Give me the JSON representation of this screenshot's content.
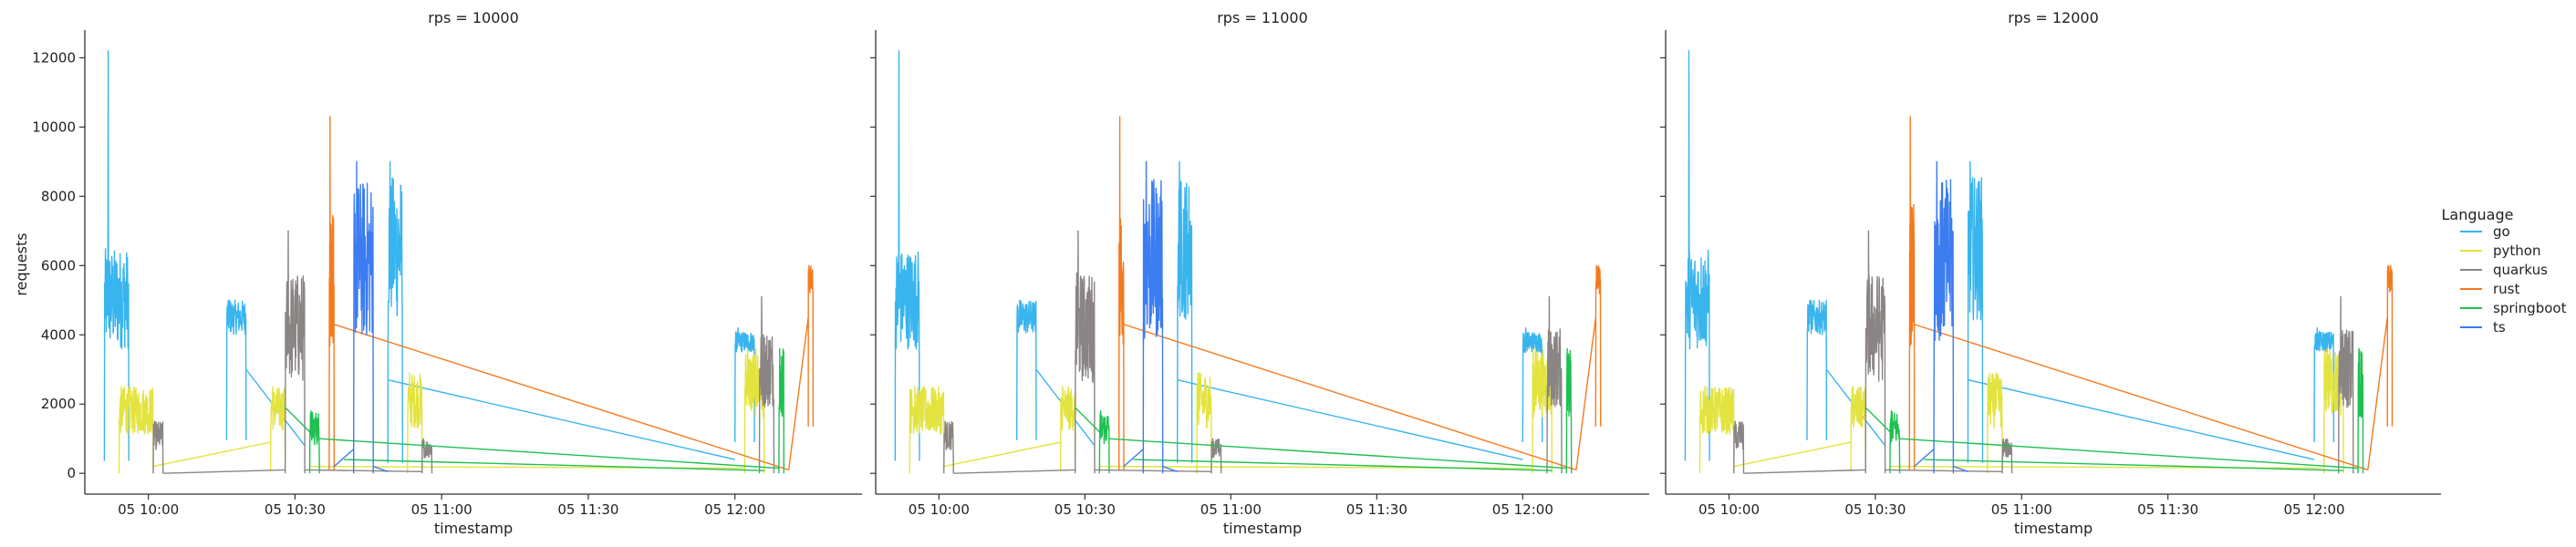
{
  "chart_data": {
    "type": "line",
    "facet_label": "rps",
    "panels": [
      {
        "title": "rps = 10000"
      },
      {
        "title": "rps = 11000"
      },
      {
        "title": "rps = 12000"
      }
    ],
    "xlabel": "timestamp",
    "ylabel": "requests",
    "x_ticks": [
      "05 10:00",
      "05 10:30",
      "05 11:00",
      "05 11:30",
      "05 12:00"
    ],
    "y_ticks": [
      0,
      2000,
      4000,
      6000,
      8000,
      10000,
      12000
    ],
    "xlim": [
      "09:47",
      "12:26"
    ],
    "ylim": [
      -600,
      12800
    ],
    "grid": false,
    "legend": {
      "title": "Language",
      "placement": "right"
    },
    "colors": {
      "go": "#38b4ee",
      "python": "#e3e33f",
      "quarkus": "#8a8584",
      "rust": "#f47a1f",
      "springboot": "#1ec050",
      "ts": "#3b7cf1"
    },
    "series": [
      {
        "name": "go",
        "segments": [
          {
            "start": "09:51",
            "end": "09:56",
            "low": 1200,
            "high": 6500,
            "spike": 12200
          },
          {
            "start": "10:16",
            "end": "10:20",
            "low": 3200,
            "high": 5000,
            "spike": 5000
          },
          {
            "start": "10:49",
            "end": "10:52",
            "low": 1000,
            "high": 8600,
            "spike": 9000
          },
          {
            "start": "12:00",
            "end": "12:04",
            "low": 3000,
            "high": 4100,
            "spike": 4200
          }
        ],
        "bridges": [
          {
            "from": [
              "10:20",
              3000
            ],
            "to": [
              "10:32",
              800
            ]
          },
          {
            "from": [
              "10:49",
              2700
            ],
            "to": [
              "12:00",
              400
            ]
          }
        ]
      },
      {
        "name": "python",
        "segments": [
          {
            "start": "09:54",
            "end": "10:01",
            "low": 0,
            "high": 2500,
            "spike": 2500
          },
          {
            "start": "10:25",
            "end": "10:28",
            "low": 200,
            "high": 2500,
            "spike": 2500
          },
          {
            "start": "10:53",
            "end": "10:56",
            "low": 0,
            "high": 2900,
            "spike": 2900
          },
          {
            "start": "12:02",
            "end": "12:06",
            "low": 0,
            "high": 3600,
            "spike": 3600
          }
        ],
        "bridges": [
          {
            "from": [
              "10:01",
              200
            ],
            "to": [
              "10:25",
              900
            ]
          },
          {
            "from": [
              "10:33",
              200
            ],
            "to": [
              "12:02",
              150
            ]
          }
        ]
      },
      {
        "name": "quarkus",
        "segments": [
          {
            "start": "10:01",
            "end": "10:03",
            "low": 0,
            "high": 1500,
            "spike": 1500
          },
          {
            "start": "10:28",
            "end": "10:32",
            "low": 0,
            "high": 5800,
            "spike": 7000
          },
          {
            "start": "10:56",
            "end": "10:58",
            "low": 0,
            "high": 1000,
            "spike": 1000
          },
          {
            "start": "12:05",
            "end": "12:08",
            "low": 0,
            "high": 4200,
            "spike": 5100
          }
        ],
        "bridges": [
          {
            "from": [
              "10:03",
              0
            ],
            "to": [
              "10:28",
              100
            ]
          },
          {
            "from": [
              "10:32",
              100
            ],
            "to": [
              "10:56",
              50
            ]
          }
        ]
      },
      {
        "name": "rust",
        "segments": [
          {
            "start": "10:37",
            "end": "10:38",
            "low": 300,
            "high": 7800,
            "spike": 10300
          },
          {
            "start": "12:15",
            "end": "12:16",
            "low": 4500,
            "high": 6000,
            "spike": 6000
          }
        ],
        "bridges": [
          {
            "from": [
              "10:38",
              4300
            ],
            "to": [
              "12:11",
              100
            ]
          },
          {
            "from": [
              "12:11",
              100
            ],
            "to": [
              "12:15",
              4500
            ]
          }
        ]
      },
      {
        "name": "springboot",
        "segments": [
          {
            "start": "10:33",
            "end": "10:35",
            "low": 0,
            "high": 1800,
            "spike": 1800
          },
          {
            "start": "12:09",
            "end": "12:10",
            "low": 0,
            "high": 3600,
            "spike": 3600
          }
        ],
        "bridges": [
          {
            "from": [
              "10:28",
              1900
            ],
            "to": [
              "10:33",
              1200
            ]
          },
          {
            "from": [
              "10:35",
              1000
            ],
            "to": [
              "12:09",
              150
            ]
          },
          {
            "from": [
              "10:40",
              400
            ],
            "to": [
              "12:06",
              80
            ]
          }
        ]
      },
      {
        "name": "ts",
        "segments": [
          {
            "start": "10:42",
            "end": "10:46",
            "low": 0,
            "high": 8500,
            "spike": 9000
          }
        ],
        "bridges": [
          {
            "from": [
              "10:38",
              200
            ],
            "to": [
              "10:42",
              700
            ]
          },
          {
            "from": [
              "10:46",
              200
            ],
            "to": [
              "10:49",
              50
            ]
          }
        ]
      }
    ]
  }
}
